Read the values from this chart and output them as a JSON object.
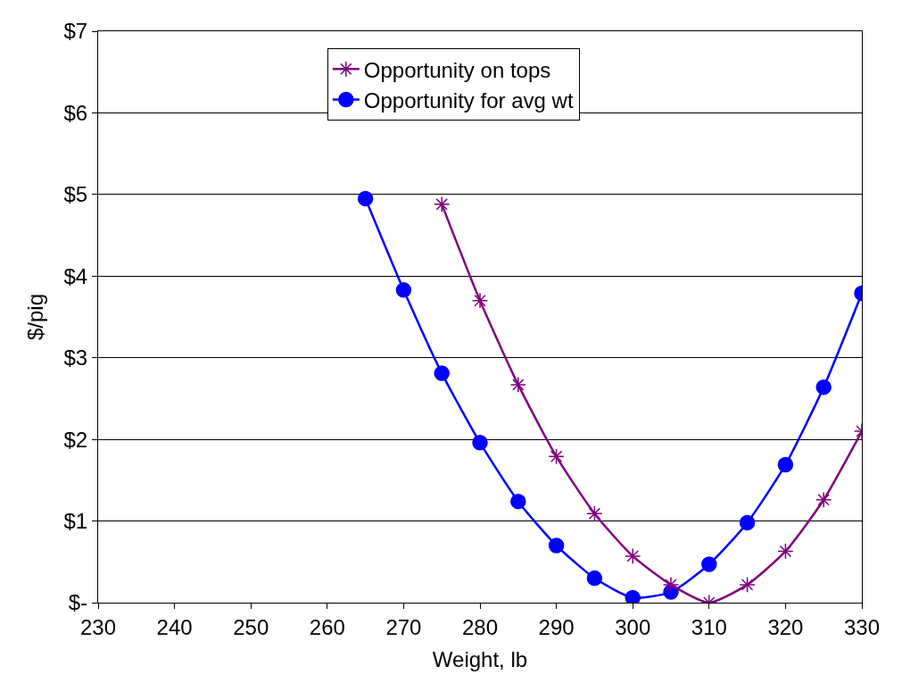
{
  "chart_data": {
    "type": "line",
    "xlabel": "Weight, lb",
    "ylabel": "$/pig",
    "xlim": [
      230,
      330
    ],
    "xticks": [
      230,
      240,
      250,
      260,
      270,
      280,
      290,
      300,
      310,
      320,
      330
    ],
    "ylim": [
      0,
      7
    ],
    "yticks": [
      {
        "value": 0,
        "label": "$-"
      },
      {
        "value": 1,
        "label": "$1"
      },
      {
        "value": 2,
        "label": "$2"
      },
      {
        "value": 3,
        "label": "$3"
      },
      {
        "value": 4,
        "label": "$4"
      },
      {
        "value": 5,
        "label": "$5"
      },
      {
        "value": 6,
        "label": "$6"
      },
      {
        "value": 7,
        "label": "$7"
      }
    ],
    "grid": "y",
    "legend": "top",
    "line_style": "solid",
    "series": [
      {
        "name": "Opportunity on tops",
        "color": "#800080",
        "marker": "cross",
        "x": [
          275,
          280,
          285,
          290,
          295,
          300,
          305,
          310,
          315,
          320,
          325,
          330
        ],
        "values": [
          4.88,
          3.7,
          2.67,
          1.79,
          1.09,
          0.57,
          0.22,
          0.0,
          0.22,
          0.63,
          1.26,
          2.1
        ]
      },
      {
        "name": "Opportunity for avg wt",
        "color": "#0000ff",
        "marker": "circle",
        "x": [
          265,
          270,
          275,
          280,
          285,
          290,
          295,
          300,
          305,
          310,
          315,
          320,
          325,
          330
        ],
        "values": [
          4.95,
          3.83,
          2.81,
          1.96,
          1.24,
          0.7,
          0.3,
          0.06,
          0.13,
          0.47,
          0.98,
          1.69,
          2.64,
          3.79
        ]
      }
    ]
  }
}
